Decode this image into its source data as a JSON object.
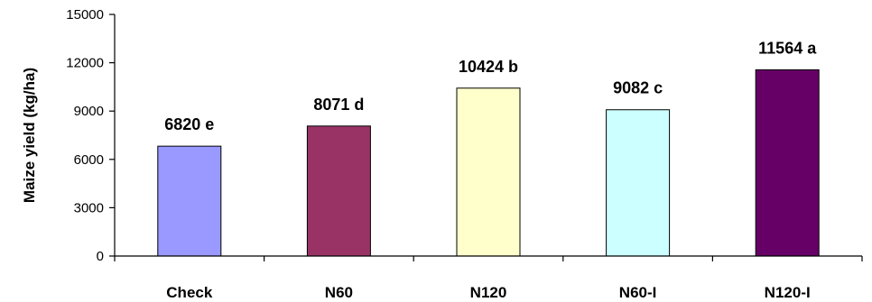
{
  "chart_data": {
    "type": "bar",
    "title": "",
    "xlabel": "",
    "ylabel": "Maize yield (kg/ha)",
    "ylim": [
      0,
      15000
    ],
    "yticks": [
      0,
      3000,
      6000,
      9000,
      12000,
      15000
    ],
    "grid": false,
    "legend": "none",
    "categories": [
      "Check",
      "N60",
      "N120",
      "N60-I",
      "N120-I"
    ],
    "values": [
      6820,
      8071,
      10424,
      9082,
      11564
    ],
    "data_labels": [
      "6820 e",
      "8071 d",
      "10424 b",
      "9082 c",
      "11564 a"
    ],
    "colors": [
      "#9999ff",
      "#993366",
      "#ffffcc",
      "#ccffff",
      "#660066"
    ]
  }
}
